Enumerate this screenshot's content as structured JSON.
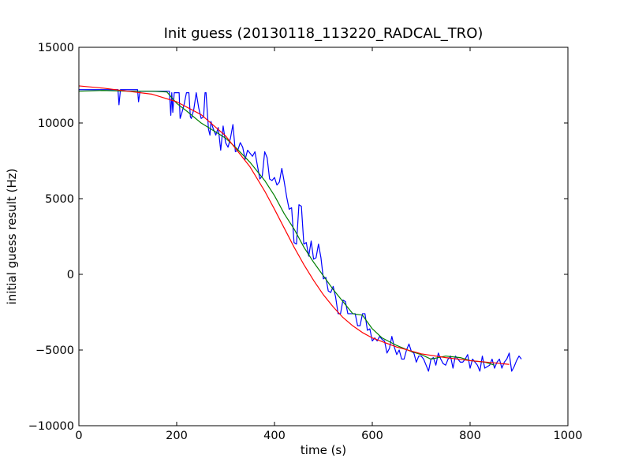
{
  "chart_data": {
    "type": "line",
    "title": "Init guess (20130118_113220_RADCAL_TRO)",
    "xlabel": "time (s)",
    "ylabel": "initial guess result (Hz)",
    "xlim": [
      0,
      1000
    ],
    "ylim": [
      -10000,
      15000
    ],
    "x_ticks": [
      0,
      200,
      400,
      600,
      800,
      1000
    ],
    "y_ticks": [
      -10000,
      -5000,
      0,
      5000,
      10000,
      15000
    ],
    "x_tick_labels": [
      "0",
      "200",
      "400",
      "600",
      "800",
      "1000"
    ],
    "y_tick_labels": [
      "−10000",
      "−5000",
      "0",
      "5000",
      "10000",
      "15000"
    ],
    "grid": false,
    "legend": "none",
    "series": [
      {
        "color": "#0000ff",
        "x": [
          0,
          80,
          82,
          85,
          120,
          122,
          125,
          150,
          185,
          188,
          190,
          192,
          195,
          205,
          207,
          210,
          215,
          220,
          225,
          228,
          230,
          235,
          240,
          245,
          250,
          255,
          258,
          260,
          265,
          268,
          270,
          275,
          280,
          285,
          290,
          295,
          300,
          305,
          310,
          315,
          320,
          325,
          330,
          335,
          340,
          345,
          350,
          355,
          360,
          365,
          370,
          375,
          380,
          385,
          390,
          395,
          400,
          405,
          410,
          415,
          420,
          425,
          430,
          435,
          440,
          445,
          450,
          455,
          460,
          465,
          470,
          475,
          480,
          485,
          490,
          495,
          500,
          505,
          510,
          515,
          520,
          525,
          530,
          535,
          540,
          545,
          550,
          555,
          560,
          565,
          570,
          575,
          580,
          585,
          590,
          595,
          600,
          605,
          610,
          615,
          620,
          625,
          630,
          635,
          640,
          645,
          650,
          655,
          660,
          665,
          670,
          675,
          680,
          685,
          690,
          695,
          700,
          705,
          710,
          715,
          720,
          725,
          730,
          735,
          740,
          745,
          750,
          755,
          760,
          765,
          770,
          775,
          780,
          785,
          790,
          795,
          800,
          805,
          810,
          815,
          820,
          825,
          830,
          835,
          840,
          845,
          850,
          855,
          860,
          865,
          870,
          875,
          880,
          885,
          890,
          895,
          900,
          905
        ],
        "y": [
          12200,
          12200,
          11200,
          12200,
          12200,
          11400,
          12100,
          12100,
          12100,
          10500,
          12000,
          10700,
          12000,
          12000,
          10300,
          10600,
          11200,
          12000,
          12000,
          10400,
          10300,
          10900,
          12000,
          11000,
          10300,
          10400,
          12000,
          12000,
          9600,
          9200,
          10100,
          9600,
          9200,
          9700,
          8200,
          9800,
          8700,
          8400,
          9000,
          9900,
          8100,
          8200,
          8700,
          8400,
          7600,
          8200,
          8000,
          7800,
          8100,
          7200,
          6300,
          6500,
          8100,
          7700,
          6300,
          6200,
          6400,
          5900,
          6100,
          7000,
          6100,
          5100,
          4300,
          4400,
          2100,
          2000,
          4600,
          4500,
          2000,
          2100,
          1200,
          2200,
          1000,
          1100,
          2000,
          1100,
          -300,
          -200,
          -1100,
          -1200,
          -800,
          -1500,
          -2600,
          -2600,
          -1700,
          -1800,
          -2600,
          -2600,
          -2600,
          -2600,
          -3400,
          -3400,
          -2600,
          -2600,
          -3700,
          -3600,
          -4400,
          -4200,
          -4400,
          -4100,
          -4300,
          -4400,
          -5200,
          -4900,
          -4100,
          -4800,
          -5300,
          -5000,
          -5600,
          -5600,
          -5000,
          -4600,
          -5100,
          -5200,
          -5800,
          -5400,
          -5400,
          -5600,
          -6000,
          -6400,
          -5600,
          -5500,
          -6000,
          -5200,
          -5600,
          -5900,
          -6000,
          -5600,
          -5400,
          -6200,
          -5400,
          -5600,
          -5800,
          -5800,
          -5600,
          -5300,
          -6200,
          -5600,
          -5800,
          -6000,
          -6400,
          -5400,
          -6200,
          -6100,
          -6000,
          -5600,
          -6200,
          -5800,
          -5600,
          -6200,
          -5800,
          -5600,
          -5200,
          -6400,
          -6100,
          -5700,
          -5400,
          -5600
        ]
      },
      {
        "color": "#007f00",
        "x": [
          0,
          50,
          100,
          150,
          180,
          200,
          220,
          250,
          280,
          300,
          320,
          350,
          380,
          400,
          420,
          440,
          460,
          480,
          500,
          520,
          540,
          560,
          580,
          600,
          620,
          650,
          680,
          700,
          720,
          750,
          780,
          800,
          830,
          850
        ],
        "y": [
          12100,
          12150,
          12100,
          12100,
          12050,
          11300,
          10800,
          10000,
          9400,
          9000,
          8400,
          7400,
          6200,
          5200,
          4000,
          3000,
          1800,
          800,
          -100,
          -1000,
          -1800,
          -2600,
          -2700,
          -3600,
          -4200,
          -4700,
          -5100,
          -5300,
          -5600,
          -5400,
          -5500,
          -5700,
          -5800,
          -6000
        ]
      },
      {
        "color": "#ff0000",
        "x": [
          0,
          50,
          100,
          150,
          200,
          250,
          300,
          350,
          380,
          400,
          420,
          440,
          460,
          480,
          500,
          520,
          540,
          560,
          580,
          600,
          650,
          700,
          750,
          800,
          850,
          880
        ],
        "y": [
          12450,
          12300,
          12100,
          11900,
          11400,
          10550,
          9150,
          7100,
          5500,
          4300,
          3050,
          1800,
          650,
          -400,
          -1350,
          -2150,
          -2850,
          -3400,
          -3850,
          -4200,
          -4800,
          -5250,
          -5500,
          -5700,
          -5850,
          -5950
        ]
      }
    ]
  }
}
